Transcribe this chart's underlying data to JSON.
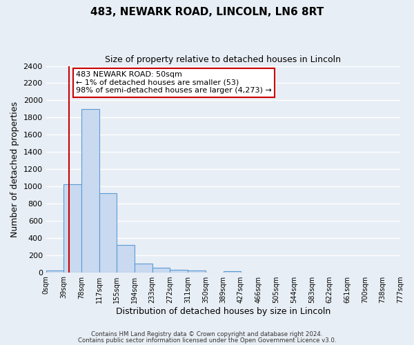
{
  "title": "483, NEWARK ROAD, LINCOLN, LN6 8RT",
  "subtitle": "Size of property relative to detached houses in Lincoln",
  "xlabel": "Distribution of detached houses by size in Lincoln",
  "ylabel": "Number of detached properties",
  "bar_edges": [
    0,
    39,
    78,
    117,
    155,
    194,
    233,
    272,
    311,
    350,
    389,
    427,
    466,
    505,
    544,
    583,
    622,
    661,
    700,
    738,
    777
  ],
  "bar_heights": [
    20,
    1020,
    1900,
    920,
    320,
    105,
    50,
    25,
    20,
    0,
    15,
    0,
    0,
    0,
    0,
    0,
    0,
    0,
    0,
    0
  ],
  "bar_color": "#c8d9f0",
  "bar_edge_color": "#5b9bd5",
  "property_line_x": 50,
  "property_line_color": "#cc0000",
  "ylim": [
    0,
    2400
  ],
  "yticks": [
    0,
    200,
    400,
    600,
    800,
    1000,
    1200,
    1400,
    1600,
    1800,
    2000,
    2200,
    2400
  ],
  "xtick_labels": [
    "0sqm",
    "39sqm",
    "78sqm",
    "117sqm",
    "155sqm",
    "194sqm",
    "233sqm",
    "272sqm",
    "311sqm",
    "350sqm",
    "389sqm",
    "427sqm",
    "466sqm",
    "505sqm",
    "544sqm",
    "583sqm",
    "622sqm",
    "661sqm",
    "700sqm",
    "738sqm",
    "777sqm"
  ],
  "annotation_line1": "483 NEWARK ROAD: 50sqm",
  "annotation_line2": "← 1% of detached houses are smaller (53)",
  "annotation_line3": "98% of semi-detached houses are larger (4,273) →",
  "annotation_box_color": "#ffffff",
  "annotation_box_edge_color": "#cc0000",
  "footer_line1": "Contains HM Land Registry data © Crown copyright and database right 2024.",
  "footer_line2": "Contains public sector information licensed under the Open Government Licence v3.0.",
  "bg_color": "#e8eef5",
  "plot_bg_color": "#e8eef5",
  "grid_color": "#ffffff",
  "title_fontsize": 11,
  "subtitle_fontsize": 9,
  "ylabel_fontsize": 9,
  "xlabel_fontsize": 9
}
